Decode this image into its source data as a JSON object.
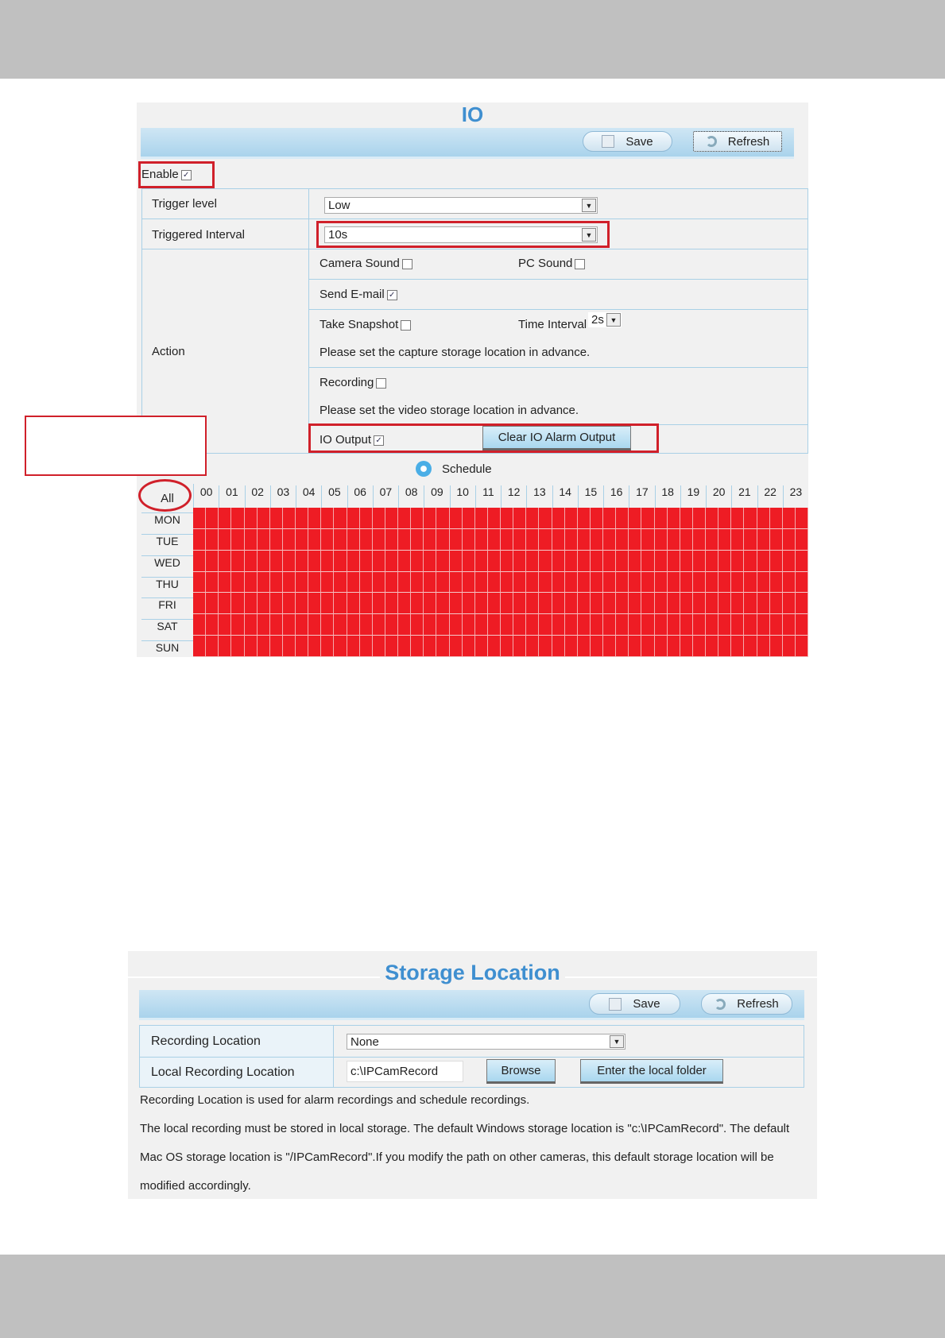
{
  "io": {
    "title": "IO",
    "toolbar": {
      "save_label": "Save",
      "refresh_label": "Refresh"
    },
    "enable": {
      "label": "Enable",
      "checked": true
    },
    "trigger_level": {
      "label": "Trigger level",
      "value": "Low"
    },
    "triggered_interval": {
      "label": "Triggered Interval",
      "value": "10s"
    },
    "action": {
      "label": "Action",
      "camera_sound": {
        "label": "Camera Sound",
        "checked": false
      },
      "pc_sound": {
        "label": "PC Sound",
        "checked": false
      },
      "send_email": {
        "label": "Send E-mail",
        "checked": true
      },
      "take_snapshot": {
        "label": "Take Snapshot",
        "checked": false
      },
      "time_interval": {
        "label": "Time Interval",
        "value": "2s"
      },
      "capture_note": "Please set the capture storage location in advance.",
      "recording": {
        "label": "Recording",
        "checked": false
      },
      "video_note": "Please set the video storage location in advance.",
      "io_output": {
        "label": "IO Output",
        "checked": true
      },
      "clear_button": "Clear IO Alarm Output"
    },
    "schedule": {
      "label": "Schedule",
      "all_label": "All",
      "hours": [
        "00",
        "01",
        "02",
        "03",
        "04",
        "05",
        "06",
        "07",
        "08",
        "09",
        "10",
        "11",
        "12",
        "13",
        "14",
        "15",
        "16",
        "17",
        "18",
        "19",
        "20",
        "21",
        "22",
        "23"
      ],
      "days": [
        "MON",
        "TUE",
        "WED",
        "THU",
        "FRI",
        "SAT",
        "SUN"
      ],
      "all_selected": true,
      "selected_color": "#ee1c24"
    }
  },
  "storage": {
    "title": "Storage Location",
    "toolbar": {
      "save_label": "Save",
      "refresh_label": "Refresh"
    },
    "recording_location": {
      "label": "Recording Location",
      "value": "None"
    },
    "local_recording_location": {
      "label": "Local Recording Location",
      "value": "c:\\IPCamRecord",
      "browse": "Browse",
      "enter_folder": "Enter the local folder"
    },
    "notes": [
      "Recording Location is used for alarm recordings and schedule recordings.",
      "The local recording must be stored in local storage. The default Windows storage location is \"c:\\IPCamRecord\". The default",
      "Mac OS storage location is \"/IPCamRecord\".If you modify the path on other cameras, this default storage location will be",
      "modified accordingly."
    ]
  },
  "colors": {
    "highlight": "#d0202a",
    "title": "#3f8fd0"
  }
}
